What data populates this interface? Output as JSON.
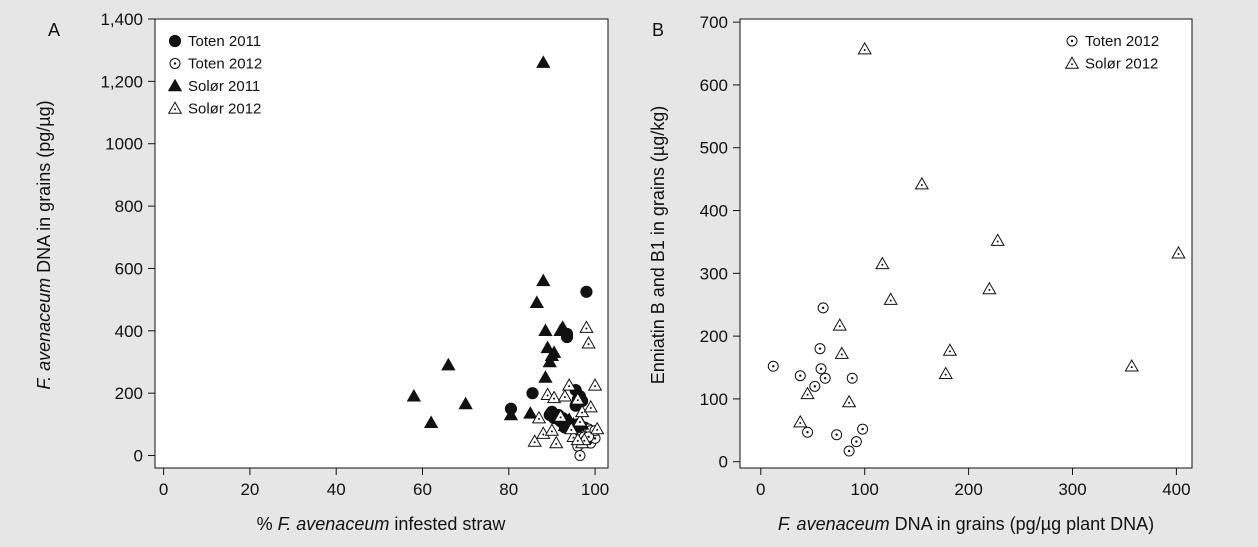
{
  "chart_data": [
    {
      "type": "scatter",
      "panel_label": "A",
      "xlabel": {
        "pre": "% ",
        "italic": "F. avenaceum",
        "post": " infested straw"
      },
      "ylabel": {
        "pre": "",
        "italic": "F. avenaceum",
        "post": " DNA in grains (pg/µg)"
      },
      "xlim": [
        -2,
        103
      ],
      "ylim": [
        -40,
        1400
      ],
      "xticks": [
        0,
        20,
        40,
        60,
        80,
        100
      ],
      "xtick_labels": [
        "0",
        "20",
        "40",
        "60",
        "80",
        "100"
      ],
      "yticks": [
        0,
        200,
        400,
        600,
        800,
        1000,
        1200,
        1400
      ],
      "ytick_labels": [
        "0",
        "200",
        "400",
        "600",
        "800",
        "1000",
        "1,200",
        "1,400"
      ],
      "legend_position": "top-left",
      "series": [
        {
          "name": "Toten 2011",
          "marker": "circle-filled",
          "x": [
            80.5,
            85.5,
            89.5,
            90,
            90.5,
            91.5,
            92,
            92.5,
            93,
            93.5,
            94,
            94.5,
            95,
            95.5,
            95.5,
            96,
            96,
            96.5,
            97,
            97.5,
            98,
            93.5,
            96
          ],
          "y": [
            150,
            200,
            130,
            140,
            120,
            130,
            110,
            120,
            90,
            380,
            100,
            100,
            95,
            210,
            160,
            180,
            100,
            190,
            175,
            90,
            525,
            390,
            95
          ]
        },
        {
          "name": "Toten 2012",
          "marker": "circle-open",
          "x": [
            95.5,
            96,
            96,
            96.5,
            96.5,
            97,
            97,
            97.5,
            98,
            98.5,
            99,
            99,
            100,
            100,
            96,
            98.5
          ],
          "y": [
            60,
            50,
            30,
            80,
            0,
            40,
            70,
            60,
            50,
            85,
            40,
            80,
            55,
            80,
            90,
            60
          ]
        },
        {
          "name": "Solør 2011",
          "marker": "triangle-filled",
          "x": [
            58,
            62,
            66,
            70,
            80.5,
            85,
            86.5,
            88,
            88,
            88.5,
            88.5,
            89,
            89.5,
            90,
            90.5,
            91,
            92,
            92.5,
            93,
            94,
            95,
            95.5,
            96,
            97
          ],
          "y": [
            190,
            105,
            290,
            165,
            130,
            135,
            490,
            560,
            1260,
            400,
            250,
            345,
            300,
            320,
            330,
            130,
            400,
            410,
            95,
            115,
            100,
            90,
            95,
            100
          ]
        },
        {
          "name": "Solør 2012",
          "marker": "triangle-open",
          "x": [
            86,
            87,
            88,
            89,
            90,
            90.5,
            91,
            92,
            93,
            94,
            95,
            96,
            96.5,
            97,
            97,
            97.5,
            98,
            98.5,
            99,
            100,
            100.5,
            94.5,
            96
          ],
          "y": [
            45,
            120,
            70,
            195,
            80,
            185,
            40,
            125,
            190,
            225,
            60,
            180,
            110,
            40,
            140,
            50,
            410,
            360,
            155,
            225,
            85,
            85,
            50
          ]
        }
      ]
    },
    {
      "type": "scatter",
      "panel_label": "B",
      "xlabel": {
        "pre": "",
        "italic": "F. avenaceum",
        "post": " DNA in grains (pg/µg plant DNA)"
      },
      "ylabel": {
        "pre": "Enniatin B and B1 in grains (µg/kg)",
        "italic": "",
        "post": ""
      },
      "xlim": [
        -20,
        415
      ],
      "ylim": [
        -10,
        705
      ],
      "xticks": [
        0,
        100,
        200,
        300,
        400
      ],
      "xtick_labels": [
        "0",
        "100",
        "200",
        "300",
        "400"
      ],
      "yticks": [
        0,
        100,
        200,
        300,
        400,
        500,
        600,
        700
      ],
      "ytick_labels": [
        "0",
        "100",
        "200",
        "300",
        "400",
        "500",
        "600",
        "700"
      ],
      "legend_position": "top-right",
      "series": [
        {
          "name": "Toten 2012",
          "marker": "circle-open",
          "x": [
            12,
            38,
            45,
            52,
            57,
            58,
            60,
            62,
            73,
            85,
            88,
            92,
            98
          ],
          "y": [
            152,
            137,
            47,
            120,
            180,
            148,
            245,
            133,
            43,
            17,
            133,
            32,
            52
          ]
        },
        {
          "name": "Solør 2012",
          "marker": "triangle-open",
          "x": [
            38,
            45,
            76,
            78,
            85,
            100,
            117,
            125,
            155,
            178,
            182,
            220,
            228,
            357,
            402
          ],
          "y": [
            63,
            108,
            217,
            172,
            95,
            657,
            315,
            258,
            442,
            140,
            177,
            275,
            352,
            152,
            332
          ]
        }
      ]
    }
  ]
}
